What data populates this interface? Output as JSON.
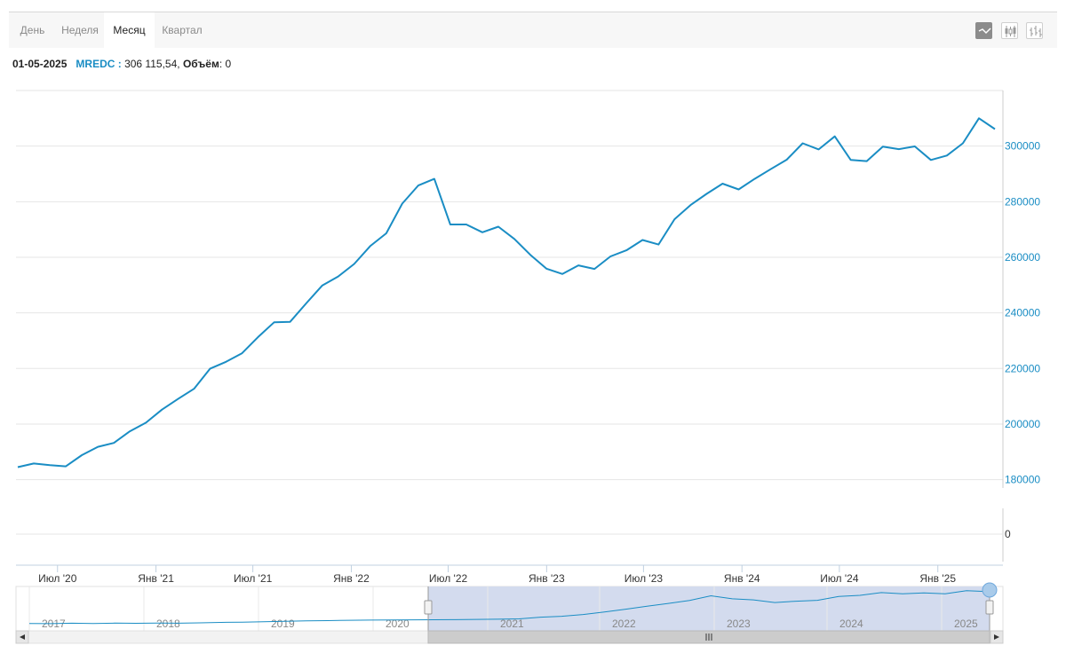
{
  "tabs": [
    {
      "label": "День",
      "active": false
    },
    {
      "label": "Неделя",
      "active": false
    },
    {
      "label": "Месяц",
      "active": true
    },
    {
      "label": "Квартал",
      "active": false
    }
  ],
  "chart_types": [
    {
      "icon": "line-chart-icon",
      "active": true
    },
    {
      "icon": "candlestick-chart-icon",
      "active": false
    },
    {
      "icon": "ohlc-chart-icon",
      "active": false
    }
  ],
  "info": {
    "date": "01-05-2025",
    "ticker": "MREDC :",
    "value": "306 115,54,",
    "volume_label": "Объём",
    "volume_value": ": 0"
  },
  "chart_data": {
    "type": "line",
    "series": [
      {
        "values": [
          184500,
          185800,
          185200,
          184800,
          188800,
          191800,
          193200,
          197400,
          200500,
          205200,
          209000,
          212700,
          219900,
          222400,
          225500,
          231300,
          236600,
          236800,
          243400,
          249800,
          253100,
          257600,
          264000,
          268600,
          279300,
          285800,
          288200,
          271800,
          271800,
          269000,
          271000,
          266600,
          260900,
          255900,
          254000,
          257100,
          255800,
          260300,
          262500,
          266200,
          264600,
          273700,
          278800,
          282800,
          286500,
          284400,
          288200,
          291700,
          295100,
          301000,
          298800,
          303500,
          295000,
          294600,
          299800,
          298900,
          299900,
          295000,
          296600,
          301000,
          310000,
          306115.54
        ]
      }
    ],
    "x_start": "2020-05-01",
    "x_end": "2025-05-01",
    "x_ticks": [
      "Июл '20",
      "Янв '21",
      "Июл '21",
      "Янв '22",
      "Июл '22",
      "Янв '23",
      "Июл '23",
      "Янв '24",
      "Июл '24",
      "Янв '25"
    ],
    "y_ticks": [
      "180000",
      "200000",
      "220000",
      "240000",
      "260000",
      "280000",
      "300000"
    ],
    "ylim": [
      177000,
      320000
    ],
    "volume_ticks": [
      "0"
    ],
    "grid": true,
    "color": "#1a8dc4",
    "navigator": {
      "years": [
        "2017",
        "2018",
        "2019",
        "2020",
        "2021",
        "2022",
        "2023",
        "2024",
        "2025"
      ],
      "values": [
        155000,
        154000,
        156000,
        155000,
        156500,
        155500,
        157000,
        156000,
        158000,
        160000,
        161000,
        163000,
        165000,
        167000,
        168500,
        170000,
        171000,
        171500,
        172000,
        172500,
        173000,
        174000,
        175000,
        176500,
        184500,
        188800,
        197400,
        209000,
        222400,
        236600,
        249800,
        264000,
        285800,
        271800,
        266600,
        254000,
        260300,
        264600,
        282800,
        288200,
        301000,
        295000,
        299800,
        295000,
        310000,
        306115.54
      ]
    }
  }
}
